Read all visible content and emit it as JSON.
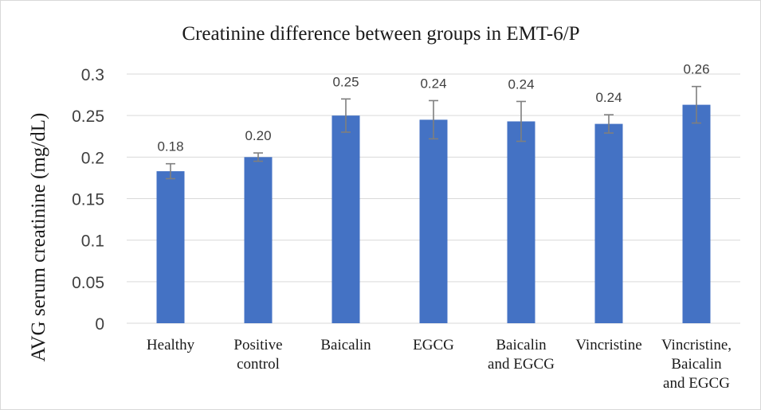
{
  "chart_data": {
    "type": "bar",
    "title": "Creatinine difference between groups in EMT-6/P",
    "xlabel": "",
    "ylabel": "AVG serum creatinine (mg/dL)",
    "ylim": [
      0,
      0.3
    ],
    "yticks": [
      "0",
      "0.05",
      "0.1",
      "0.15",
      "0.2",
      "0.25",
      "0.3"
    ],
    "ytick_values": [
      0,
      0.05,
      0.1,
      0.15,
      0.2,
      0.25,
      0.3
    ],
    "grid": "horizontal",
    "legend": "none",
    "categories": [
      [
        "Healthy"
      ],
      [
        "Positive",
        "control"
      ],
      [
        "Baicalin"
      ],
      [
        "EGCG"
      ],
      [
        "Baicalin",
        "and EGCG"
      ],
      [
        "Vincristine"
      ],
      [
        "Vincristine,",
        "Baicalin",
        "and EGCG"
      ]
    ],
    "values": [
      0.183,
      0.2,
      0.25,
      0.245,
      0.243,
      0.24,
      0.263
    ],
    "data_labels": [
      "0.18",
      "0.20",
      "0.25",
      "0.24",
      "0.24",
      "0.24",
      "0.26"
    ],
    "error_bars": [
      0.009,
      0.005,
      0.02,
      0.023,
      0.024,
      0.011,
      0.022
    ],
    "colors": {
      "bar": "#4472C4",
      "error": "#7f7f7f",
      "grid": "#d9d9d9"
    }
  }
}
